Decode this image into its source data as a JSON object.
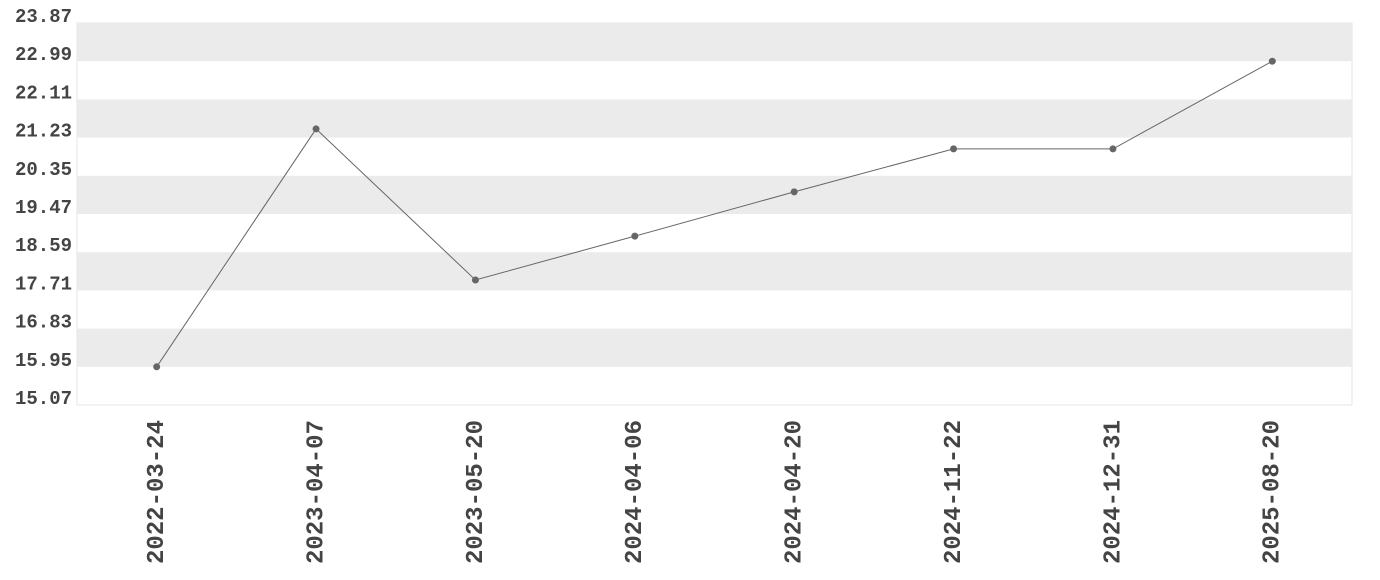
{
  "chart_data": {
    "type": "line",
    "categories": [
      "2022-03-24",
      "2023-04-07",
      "2023-05-20",
      "2024-04-06",
      "2024-04-20",
      "2024-11-22",
      "2024-12-31",
      "2025-08-20"
    ],
    "values": [
      15.95,
      21.43,
      17.95,
      18.96,
      19.98,
      20.97,
      20.97,
      22.99
    ],
    "color": "#666666",
    "ylim": [
      15.07,
      23.87
    ],
    "yticks": [
      15.07,
      15.95,
      16.83,
      17.71,
      18.59,
      19.47,
      20.35,
      21.23,
      22.11,
      22.99,
      23.87
    ],
    "grid": true
  }
}
